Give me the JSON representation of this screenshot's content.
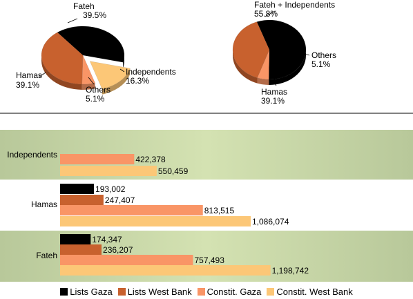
{
  "chart_data": [
    {
      "type": "pie",
      "slices": [
        {
          "label": "Fateh",
          "pct": "39.5%",
          "value": 39.5
        },
        {
          "label": "Independents",
          "pct": "16.3%",
          "value": 16.3,
          "exploded": true
        },
        {
          "label": "Others",
          "pct": "5.1%",
          "value": 5.1
        },
        {
          "label": "Hamas",
          "pct": "39.1%",
          "value": 39.1
        }
      ]
    },
    {
      "type": "pie",
      "slices": [
        {
          "label": "Fateh + Independents",
          "pct": "55.8%",
          "value": 55.8
        },
        {
          "label": "Others",
          "pct": "5.1%",
          "value": 5.1
        },
        {
          "label": "Hamas",
          "pct": "39.1%",
          "value": 39.1
        }
      ]
    },
    {
      "type": "bar",
      "orientation": "horizontal",
      "categories": [
        "Independents",
        "Hamas",
        "Fateh"
      ],
      "series": [
        {
          "name": "Lists Gaza",
          "color": "#000000",
          "values": [
            null,
            193002,
            174347
          ],
          "labels": [
            "",
            "193,002",
            "174,347"
          ]
        },
        {
          "name": "Lists West Bank",
          "color": "#c8612e",
          "values": [
            null,
            247407,
            236207
          ],
          "labels": [
            "",
            "247,407",
            "236,207"
          ]
        },
        {
          "name": "Constit. Gaza",
          "color": "#f99566",
          "values": [
            422378,
            813515,
            757493
          ],
          "labels": [
            "422,378",
            "813,515",
            "757,493"
          ]
        },
        {
          "name": "Constit. West Bank",
          "color": "#fcc777",
          "values": [
            550459,
            1086074,
            1198742
          ],
          "labels": [
            "550,459",
            "1,086,074",
            "1,198,742"
          ]
        }
      ],
      "legend": "bottom"
    }
  ],
  "colors": {
    "fateh": "#000000",
    "hamas": "#c8612e",
    "others": "#f99566",
    "independents": "#fcc777"
  }
}
